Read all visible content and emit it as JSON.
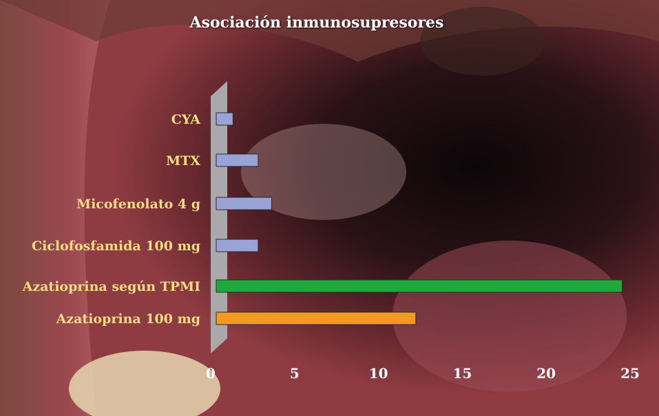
{
  "chart_data": {
    "type": "bar",
    "orientation": "horizontal",
    "title": "Asociación inmunosupresores",
    "categories": [
      "CYA",
      "MTX",
      "Micofenolato 4 g",
      "Ciclofosfamida 100 mg",
      "Azatioprina según TPMI",
      "Azatioprina 100 mg"
    ],
    "values": [
      1,
      2.5,
      3.3,
      2.5,
      24.2,
      11.9
    ],
    "colors": [
      "#9aa3d8",
      "#9aa3d8",
      "#9aa3d8",
      "#9aa3d8",
      "#1fa83c",
      "#f39a22"
    ],
    "xlim": [
      0,
      25
    ],
    "ticks": [
      0,
      5,
      10,
      15,
      20,
      25
    ],
    "grid": false,
    "background": "photo of oral cavity"
  }
}
